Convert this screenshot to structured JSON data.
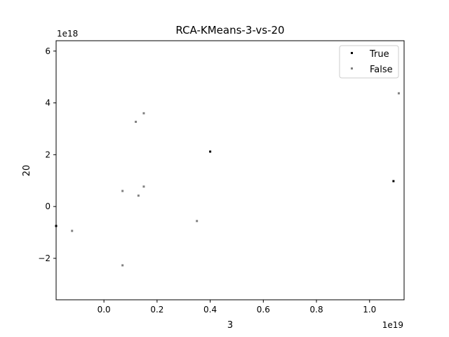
{
  "chart_data": {
    "type": "scatter",
    "title": "RCA-KMeans-3-vs-20",
    "xlabel": "3",
    "ylabel": "20",
    "x_offset_label": "1e19",
    "y_offset_label": "1e18",
    "xlim": [
      -0.18,
      1.13
    ],
    "ylim": [
      -3.6,
      6.4
    ],
    "x_ticks": [
      0.0,
      0.2,
      0.4,
      0.6,
      0.8,
      1.0
    ],
    "x_tick_labels": [
      "0.0",
      "0.2",
      "0.4",
      "0.6",
      "0.8",
      "1.0"
    ],
    "y_ticks": [
      -2,
      0,
      2,
      4,
      6
    ],
    "y_tick_labels": [
      "−2",
      "0",
      "2",
      "4",
      "6"
    ],
    "grid": false,
    "legend_position": "top-right",
    "series": [
      {
        "name": "True",
        "color": "#000000",
        "points": [
          {
            "x": 0.4,
            "y": 2.12
          },
          {
            "x": 1.09,
            "y": 0.98
          },
          {
            "x": -0.18,
            "y": -0.75
          }
        ]
      },
      {
        "name": "False",
        "color": "#808080",
        "points": [
          {
            "x": 1.11,
            "y": 4.37
          },
          {
            "x": 0.15,
            "y": 3.6
          },
          {
            "x": 0.12,
            "y": 3.27
          },
          {
            "x": 0.07,
            "y": 0.6
          },
          {
            "x": 0.15,
            "y": 0.77
          },
          {
            "x": 0.13,
            "y": 0.42
          },
          {
            "x": 0.35,
            "y": -0.56
          },
          {
            "x": -0.12,
            "y": -0.94
          },
          {
            "x": 0.07,
            "y": -2.27
          }
        ]
      }
    ]
  }
}
